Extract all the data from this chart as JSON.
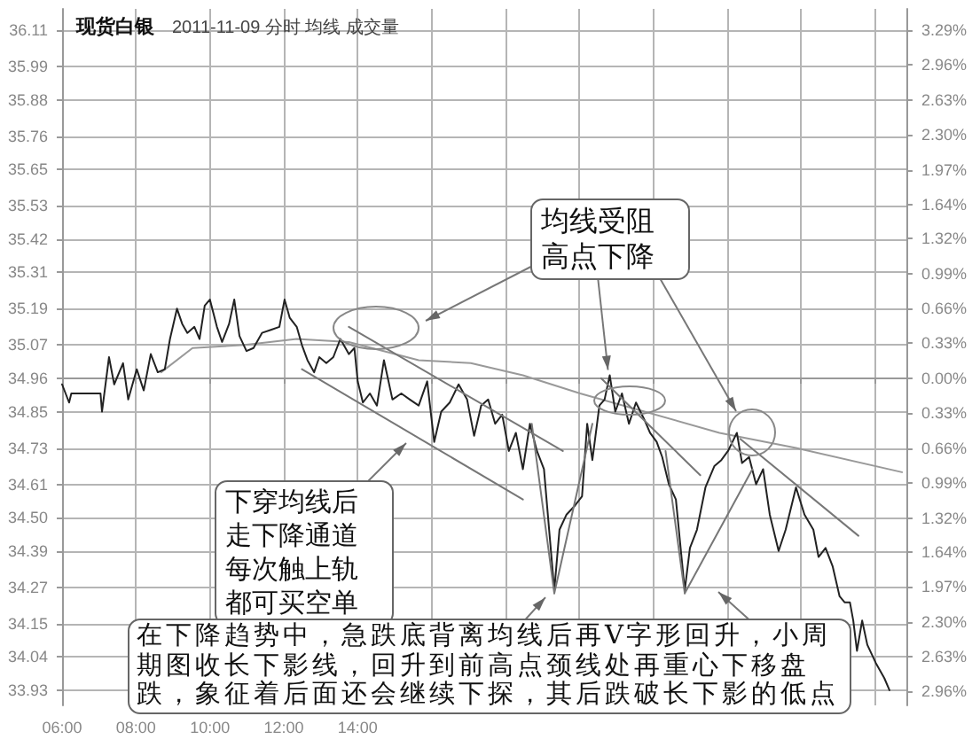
{
  "chart_data": {
    "type": "line",
    "title": "现货白银",
    "subtitle": "2011-11-09 分时 均线 成交量",
    "xlim": [
      6,
      28.87
    ],
    "xticks": [
      {
        "value": 6,
        "label": "06:00"
      },
      {
        "value": 8,
        "label": "08:00"
      },
      {
        "value": 10,
        "label": "10:00"
      },
      {
        "value": 12,
        "label": "12:00"
      },
      {
        "value": 14,
        "label": "14:00"
      },
      {
        "value": 16,
        "label": null
      },
      {
        "value": 18,
        "label": null
      },
      {
        "value": 20,
        "label": null
      },
      {
        "value": 22,
        "label": null
      },
      {
        "value": 24,
        "label": null
      },
      {
        "value": 26,
        "label": null
      },
      {
        "value": 28,
        "label": null
      }
    ],
    "ylim": [
      33.88,
      36.18
    ],
    "yticks": [
      33.93,
      34.04,
      34.15,
      34.27,
      34.39,
      {
        "value": 34.5,
        "label": "34.50"
      },
      34.61,
      34.73,
      34.85,
      34.96,
      35.07,
      35.19,
      35.31,
      35.42,
      35.53,
      35.65,
      35.76,
      35.88,
      35.99,
      36.11
    ],
    "y2lim": [
      -3.09,
      3.49
    ],
    "y2ticks": [
      {
        "value": -2.96,
        "label": "2.96%"
      },
      {
        "value": -2.63,
        "label": "2.63%"
      },
      {
        "value": -2.3,
        "label": "2.30%"
      },
      {
        "value": -1.97,
        "label": "1.97%"
      },
      {
        "value": -1.64,
        "label": "1.64%"
      },
      {
        "value": -1.32,
        "label": "1.32%"
      },
      {
        "value": -0.99,
        "label": "0.99%"
      },
      {
        "value": -0.66,
        "label": "0.66%"
      },
      {
        "value": -0.33,
        "label": "0.33%"
      },
      {
        "value": 0,
        "label": "0.00%"
      },
      {
        "value": 0.33,
        "label": "0.33%"
      },
      {
        "value": 0.66,
        "label": "0.66%"
      },
      {
        "value": 0.99,
        "label": "0.99%"
      },
      {
        "value": 1.32,
        "label": "1.32%"
      },
      {
        "value": 1.64,
        "label": "1.64%"
      },
      {
        "value": 1.97,
        "label": "1.97%"
      },
      {
        "value": 2.3,
        "label": "2.30%"
      },
      {
        "value": 2.63,
        "label": "2.63%"
      },
      {
        "value": 2.96,
        "label": "2.96%"
      },
      {
        "value": 3.29,
        "label": "3.29%"
      }
    ],
    "grid": true,
    "annotations": [
      {
        "text": "均线受阻高点下降",
        "x": 20.82,
        "y": 34.97
      },
      "下穿均线后走下降通道每次触上轨都可买空单",
      {
        "text": "在下降趋势中，急跌底背离均线后再V字形回升，小周期图收长下影线，回升到前高点颈线处再重心下移盘跌，象征着后面还会继续下探，其后跌破长下影的低点",
        "x": 19.32,
        "y": 34.26
      }
    ],
    "series": [
      {
        "color": "#999999",
        "x": [
          8.68,
          9.53,
          10.94,
          12.35,
          13.76,
          15.65,
          17.06,
          18.47,
          20.02,
          23.79,
          25.86,
          28.73
        ],
        "values": [
          34.98,
          35.06,
          35.07,
          35.09,
          35.08,
          35.02,
          35.01,
          34.97,
          34.91,
          34.78,
          34.73,
          34.65
        ]
      },
      {
        "type": "line",
        "color": "#222222",
        "x": [
          6.0,
          6.19,
          6.25,
          7.04,
          7.08,
          7.27,
          7.41,
          7.65,
          7.79,
          8.02,
          8.21,
          8.4,
          8.59,
          8.78,
          8.92,
          9.11,
          9.25,
          9.39,
          9.58,
          9.72,
          9.86,
          10.0,
          10.19,
          10.33,
          10.52,
          10.66,
          10.8,
          10.99,
          11.18,
          11.41,
          11.65,
          11.88,
          12.02,
          12.16,
          12.35,
          12.49,
          12.64,
          12.82,
          12.96,
          13.15,
          13.34,
          13.53,
          13.76,
          13.91,
          14.0,
          14.14,
          14.33,
          14.52,
          14.71,
          14.94,
          15.18,
          15.41,
          15.65,
          15.88,
          16.07,
          16.26,
          16.49,
          16.73,
          16.96,
          17.15,
          17.34,
          17.53,
          17.72,
          17.91,
          18.09,
          18.28,
          18.47,
          18.66,
          18.85,
          19.04,
          19.18,
          19.32,
          19.46,
          19.65,
          19.88,
          20.07,
          20.21,
          20.35,
          20.54,
          20.68,
          20.82,
          20.97,
          21.15,
          21.34,
          21.53,
          21.77,
          21.91,
          22.09,
          22.24,
          22.42,
          22.61,
          22.85,
          22.99,
          23.18,
          23.41,
          23.65,
          23.84,
          24.02,
          24.26,
          24.4,
          24.59,
          24.78,
          24.97,
          25.15,
          25.39,
          25.58,
          25.86,
          26.09,
          26.33,
          26.47,
          26.66,
          26.85,
          27.04,
          27.18,
          27.32,
          27.41,
          27.51,
          27.65,
          27.79,
          28.02,
          28.25,
          28.39
        ],
        "values": [
          34.94,
          34.88,
          34.91,
          34.91,
          34.85,
          35.03,
          34.94,
          35.01,
          34.89,
          34.99,
          34.92,
          35.04,
          34.98,
          34.99,
          35.09,
          35.19,
          35.14,
          35.11,
          35.13,
          35.09,
          35.2,
          35.22,
          35.13,
          35.08,
          35.14,
          35.22,
          35.1,
          35.05,
          35.06,
          35.11,
          35.12,
          35.13,
          35.22,
          35.16,
          35.13,
          35.07,
          35.02,
          34.98,
          35.03,
          35.01,
          35.03,
          35.09,
          35.04,
          35.06,
          34.95,
          34.88,
          34.91,
          34.87,
          35.02,
          34.89,
          34.91,
          34.89,
          34.87,
          34.95,
          34.75,
          34.85,
          34.88,
          34.94,
          34.89,
          34.77,
          34.87,
          34.89,
          34.81,
          34.84,
          34.72,
          34.78,
          34.66,
          34.81,
          34.72,
          34.66,
          34.46,
          34.26,
          34.46,
          34.51,
          34.54,
          34.57,
          34.81,
          34.69,
          34.87,
          34.89,
          34.97,
          34.85,
          34.91,
          34.81,
          34.88,
          34.82,
          34.78,
          34.75,
          34.7,
          34.61,
          34.56,
          34.26,
          34.4,
          34.46,
          34.6,
          34.67,
          34.69,
          34.72,
          34.78,
          34.68,
          34.7,
          34.61,
          34.66,
          34.51,
          34.39,
          34.46,
          34.6,
          34.51,
          34.46,
          34.37,
          34.4,
          34.34,
          34.24,
          34.22,
          34.22,
          34.16,
          34.06,
          34.16,
          34.08,
          34.02,
          33.97,
          33.93
        ]
      },
      {
        "type": "line",
        "color": "#777777",
        "x": [
          13.76,
          19.55
        ],
        "values": [
          35.13,
          34.72
        ]
      },
      {
        "type": "line",
        "color": "#777777",
        "x": [
          12.49,
          18.47
        ],
        "values": [
          34.99,
          34.56
        ]
      },
      {
        "type": "line",
        "color": "#777777",
        "x": [
          20.59,
          23.27
        ],
        "values": [
          34.96,
          34.64
        ]
      },
      {
        "type": "line",
        "color": "#777777",
        "x": [
          24.35,
          27.55
        ],
        "values": [
          34.76,
          34.44
        ]
      },
      {
        "type": "line",
        "color": "#777777",
        "x": [
          18.71,
          19.32
        ],
        "values": [
          34.81,
          34.25
        ]
      },
      {
        "type": "line",
        "color": "#777777",
        "x": [
          19.32,
          20.35
        ],
        "values": [
          34.25,
          34.81
        ]
      },
      {
        "type": "line",
        "color": "#777777",
        "x": [
          22.33,
          22.85
        ],
        "values": [
          34.72,
          34.25
        ]
      },
      {
        "type": "line",
        "color": "#777777",
        "x": [
          22.85,
          24.68
        ],
        "values": [
          34.25,
          34.66
        ]
      }
    ]
  }
}
